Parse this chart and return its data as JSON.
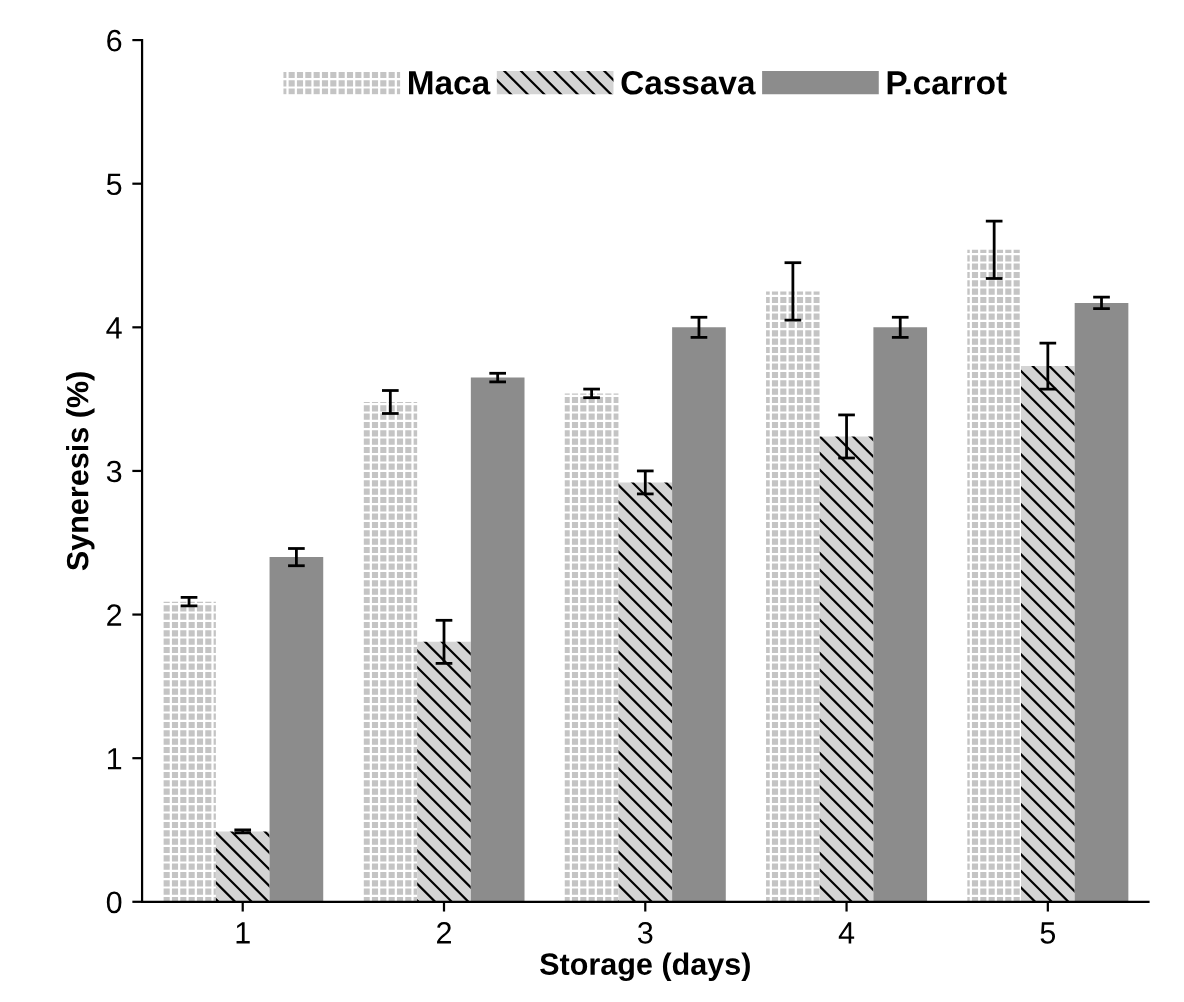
{
  "chart_data": {
    "type": "bar",
    "xlabel": "Storage (days)",
    "ylabel": "Syneresis (%)",
    "categories": [
      "1",
      "2",
      "3",
      "4",
      "5"
    ],
    "series": [
      {
        "name": "Maca",
        "color": "#c4c4c4",
        "values": [
          2.09,
          3.48,
          3.54,
          4.25,
          4.54
        ],
        "errors": [
          0.03,
          0.08,
          0.03,
          0.2,
          0.2
        ]
      },
      {
        "name": "Cassava",
        "color": "#d4d4d4",
        "values": [
          0.49,
          1.81,
          2.92,
          3.24,
          3.73
        ],
        "errors": [
          0.01,
          0.15,
          0.08,
          0.15,
          0.16
        ]
      },
      {
        "name": "P.carrot",
        "color": "#8c8c8c",
        "values": [
          2.4,
          3.65,
          4.0,
          4.0,
          4.17
        ],
        "errors": [
          0.06,
          0.03,
          0.07,
          0.07,
          0.04
        ]
      }
    ],
    "ylim": [
      0,
      6
    ],
    "yticks": [
      0,
      1,
      2,
      3,
      4,
      5,
      6
    ],
    "grid": false,
    "legend": "top"
  }
}
